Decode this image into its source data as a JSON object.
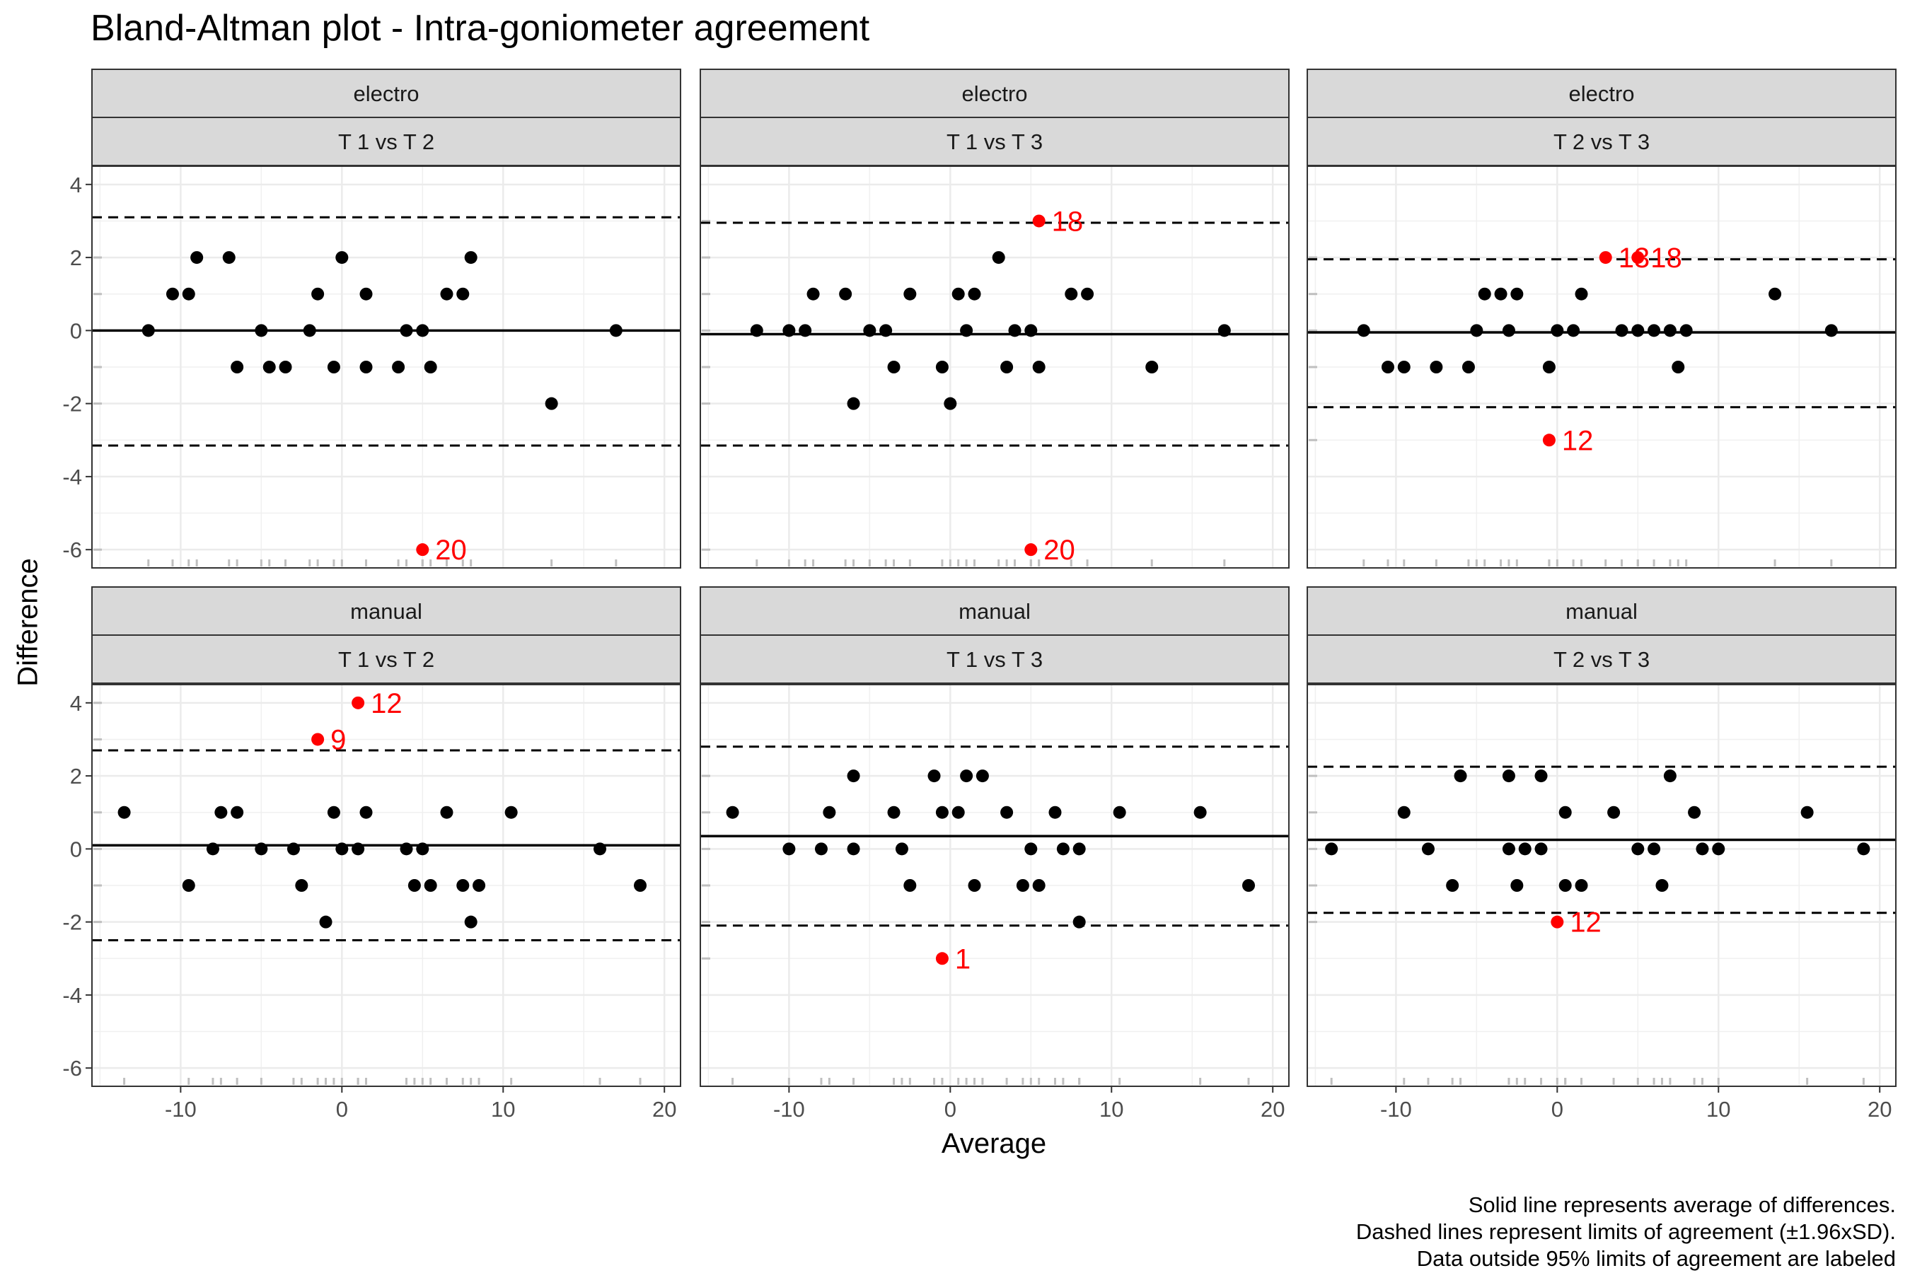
{
  "chart_data": {
    "type": "scatter",
    "title": "Bland-Altman plot - Intra-goniometer agreement",
    "xlabel": "Average",
    "ylabel": "Difference",
    "xlim": [
      -15.5,
      21
    ],
    "ylim": [
      -6.5,
      4.5
    ],
    "x_ticks": [
      -10,
      0,
      10,
      20
    ],
    "y_ticks": [
      -6,
      -4,
      -2,
      0,
      2,
      4
    ],
    "grid": true,
    "outlier_color": "#ff0000",
    "point_color": "#000000",
    "caption": [
      "Solid line represents average of differences.",
      "Dashed lines represent limits of agreement (±1.96xSD).",
      "Data outside 95% limits of agreement are labeled"
    ],
    "panels": [
      {
        "method": "electro",
        "comparison": "T 1 vs T 2",
        "mean_diff": 0,
        "loa_upper": 3.1,
        "loa_lower": -3.15,
        "points": [
          [
            -12,
            0
          ],
          [
            -10.5,
            1
          ],
          [
            -9.5,
            1
          ],
          [
            -9,
            2
          ],
          [
            -7,
            2
          ],
          [
            -6.5,
            -1
          ],
          [
            -5,
            0
          ],
          [
            -4.5,
            -1
          ],
          [
            -3.5,
            -1
          ],
          [
            -2,
            0
          ],
          [
            -1.5,
            1
          ],
          [
            -0.5,
            -1
          ],
          [
            0,
            2
          ],
          [
            1.5,
            1
          ],
          [
            1.5,
            -1
          ],
          [
            3.5,
            -1
          ],
          [
            4,
            0
          ],
          [
            5,
            0
          ],
          [
            5.5,
            -1
          ],
          [
            6.5,
            1
          ],
          [
            7.5,
            1
          ],
          [
            8,
            2
          ],
          [
            13,
            -2
          ],
          [
            17,
            0
          ]
        ],
        "labeled": [
          {
            "x": 5,
            "y": -6,
            "label": "20"
          }
        ]
      },
      {
        "method": "electro",
        "comparison": "T 1 vs T 3",
        "mean_diff": -0.1,
        "loa_upper": 2.95,
        "loa_lower": -3.15,
        "points": [
          [
            -12,
            0
          ],
          [
            -10,
            0
          ],
          [
            -9,
            0
          ],
          [
            -8.5,
            1
          ],
          [
            -6.5,
            1
          ],
          [
            -6,
            -2
          ],
          [
            -5,
            0
          ],
          [
            -4,
            0
          ],
          [
            -3.5,
            -1
          ],
          [
            -2.5,
            1
          ],
          [
            -0.5,
            -1
          ],
          [
            0,
            -2
          ],
          [
            0.5,
            1
          ],
          [
            1,
            0
          ],
          [
            1.5,
            1
          ],
          [
            3,
            2
          ],
          [
            3.5,
            -1
          ],
          [
            4,
            0
          ],
          [
            5,
            0
          ],
          [
            5.5,
            -1
          ],
          [
            7.5,
            1
          ],
          [
            8.5,
            1
          ],
          [
            12.5,
            -1
          ],
          [
            17,
            0
          ]
        ],
        "labeled": [
          {
            "x": 5.5,
            "y": 3,
            "label": "18"
          },
          {
            "x": 5,
            "y": -6,
            "label": "20"
          }
        ]
      },
      {
        "method": "electro",
        "comparison": "T 2 vs T 3",
        "mean_diff": -0.05,
        "loa_upper": 1.95,
        "loa_lower": -2.1,
        "points": [
          [
            -12,
            0
          ],
          [
            -10.5,
            -1
          ],
          [
            -9.5,
            -1
          ],
          [
            -7.5,
            -1
          ],
          [
            -5.5,
            -1
          ],
          [
            -5,
            0
          ],
          [
            -4.5,
            1
          ],
          [
            -3.5,
            1
          ],
          [
            -3,
            0
          ],
          [
            -2.5,
            1
          ],
          [
            -0.5,
            -1
          ],
          [
            0,
            0
          ],
          [
            1,
            0
          ],
          [
            1.5,
            1
          ],
          [
            4,
            0
          ],
          [
            5,
            0
          ],
          [
            6,
            0
          ],
          [
            7,
            0
          ],
          [
            7.5,
            -1
          ],
          [
            8,
            0
          ],
          [
            13.5,
            1
          ],
          [
            17,
            0
          ]
        ],
        "labeled": [
          {
            "x": 3,
            "y": 2,
            "label": "13"
          },
          {
            "x": 5,
            "y": 2,
            "label": "18"
          },
          {
            "x": -0.5,
            "y": -3,
            "label": "12"
          }
        ]
      },
      {
        "method": "manual",
        "comparison": "T 1 vs T 2",
        "mean_diff": 0.1,
        "loa_upper": 2.7,
        "loa_lower": -2.5,
        "points": [
          [
            -13.5,
            1
          ],
          [
            -9.5,
            -1
          ],
          [
            -8,
            0
          ],
          [
            -7.5,
            1
          ],
          [
            -6.5,
            1
          ],
          [
            -5,
            0
          ],
          [
            -3,
            0
          ],
          [
            -2.5,
            -1
          ],
          [
            -1,
            -2
          ],
          [
            -0.5,
            1
          ],
          [
            0,
            0
          ],
          [
            1,
            0
          ],
          [
            1.5,
            1
          ],
          [
            4,
            0
          ],
          [
            4.5,
            -1
          ],
          [
            5,
            0
          ],
          [
            5.5,
            -1
          ],
          [
            6.5,
            1
          ],
          [
            7.5,
            -1
          ],
          [
            8,
            -2
          ],
          [
            8.5,
            -1
          ],
          [
            10.5,
            1
          ],
          [
            16,
            0
          ],
          [
            18.5,
            -1
          ]
        ],
        "labeled": [
          {
            "x": 1,
            "y": 4,
            "label": "12"
          },
          {
            "x": -1.5,
            "y": 3,
            "label": "9"
          }
        ]
      },
      {
        "method": "manual",
        "comparison": "T 1 vs T 3",
        "mean_diff": 0.35,
        "loa_upper": 2.8,
        "loa_lower": -2.1,
        "points": [
          [
            -13.5,
            1
          ],
          [
            -10,
            0
          ],
          [
            -8,
            0
          ],
          [
            -7.5,
            1
          ],
          [
            -6,
            2
          ],
          [
            -6,
            0
          ],
          [
            -3.5,
            1
          ],
          [
            -3,
            0
          ],
          [
            -2.5,
            -1
          ],
          [
            -1,
            2
          ],
          [
            -0.5,
            1
          ],
          [
            0.5,
            1
          ],
          [
            1,
            2
          ],
          [
            1.5,
            -1
          ],
          [
            2,
            2
          ],
          [
            3.5,
            1
          ],
          [
            4.5,
            -1
          ],
          [
            5,
            0
          ],
          [
            5.5,
            -1
          ],
          [
            6.5,
            1
          ],
          [
            7,
            0
          ],
          [
            8,
            0
          ],
          [
            8,
            -2
          ],
          [
            10.5,
            1
          ],
          [
            15.5,
            1
          ],
          [
            18.5,
            -1
          ]
        ],
        "labeled": [
          {
            "x": -0.5,
            "y": -3,
            "label": "1"
          }
        ]
      },
      {
        "method": "manual",
        "comparison": "T 2 vs T 3",
        "mean_diff": 0.25,
        "loa_upper": 2.25,
        "loa_lower": -1.75,
        "points": [
          [
            -14,
            0
          ],
          [
            -9.5,
            1
          ],
          [
            -8,
            0
          ],
          [
            -6.5,
            -1
          ],
          [
            -6,
            2
          ],
          [
            -3,
            2
          ],
          [
            -3,
            0
          ],
          [
            -2.5,
            -1
          ],
          [
            -2,
            0
          ],
          [
            -1,
            2
          ],
          [
            -1,
            0
          ],
          [
            0.5,
            1
          ],
          [
            0.5,
            -1
          ],
          [
            1.5,
            -1
          ],
          [
            3.5,
            1
          ],
          [
            5,
            0
          ],
          [
            6,
            0
          ],
          [
            6.5,
            -1
          ],
          [
            7,
            2
          ],
          [
            8.5,
            1
          ],
          [
            9,
            0
          ],
          [
            10,
            0
          ],
          [
            15.5,
            1
          ],
          [
            19,
            0
          ]
        ],
        "labeled": [
          {
            "x": 0,
            "y": -2,
            "label": "12"
          }
        ]
      }
    ]
  }
}
